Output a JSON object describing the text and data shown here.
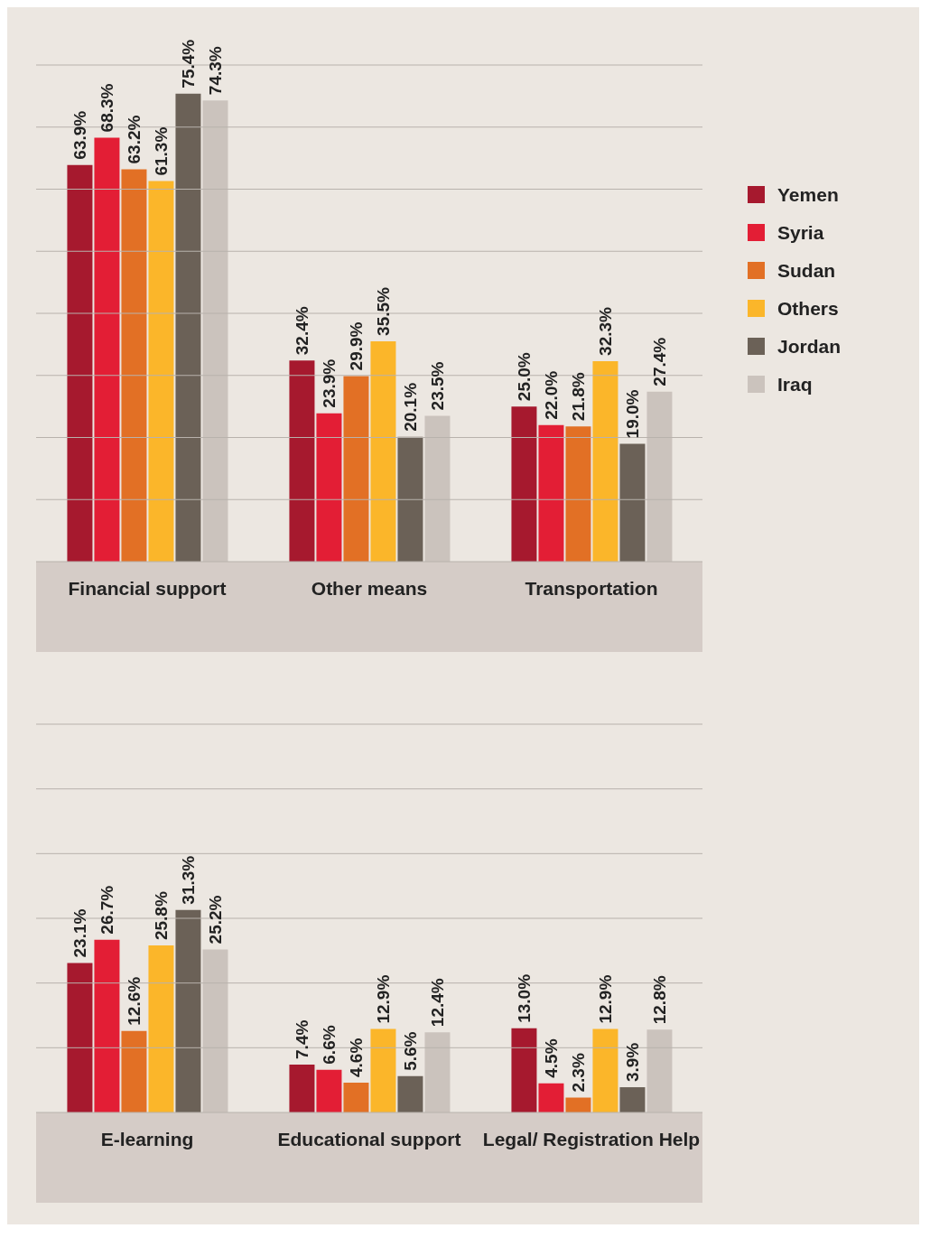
{
  "chart_data": [
    {
      "type": "bar",
      "categories": [
        "Financial support",
        "Other means",
        "Transportation"
      ],
      "ylim": [
        0,
        80
      ],
      "yticks": [
        {
          "value": 0,
          "label": null
        },
        {
          "value": 10,
          "label": null
        },
        {
          "value": 20,
          "label": null
        },
        {
          "value": 30,
          "label": null
        },
        {
          "value": 40,
          "label": null
        },
        {
          "value": 50,
          "label": null
        },
        {
          "value": 60,
          "label": null
        },
        {
          "value": 70,
          "label": null
        },
        {
          "value": 80,
          "label": null
        }
      ],
      "grid": "y",
      "tick_labels": "x",
      "legend": "right",
      "series": [
        {
          "name": "Yemen",
          "color": "#a6192e",
          "values": [
            63.9,
            32.4,
            25.0
          ],
          "value_labels": [
            "63.9%",
            "32.4%",
            "25.0%"
          ]
        },
        {
          "name": "Syria",
          "color": "#e31e35",
          "values": [
            68.3,
            23.9,
            22.0
          ],
          "value_labels": [
            "68.3%",
            "23.9%",
            "22.0%"
          ]
        },
        {
          "name": "Sudan",
          "color": "#e27025",
          "values": [
            63.2,
            29.9,
            21.8
          ],
          "value_labels": [
            "63.2%",
            "29.9%",
            "21.8%"
          ]
        },
        {
          "name": "Others",
          "color": "#fbb62a",
          "values": [
            61.3,
            35.5,
            32.3
          ],
          "value_labels": [
            "61.3%",
            "35.5%",
            "32.3%"
          ]
        },
        {
          "name": "Jordan",
          "color": "#6b6157",
          "values": [
            75.4,
            20.1,
            19.0
          ],
          "value_labels": [
            "75.4%",
            "20.1%",
            "19.0%"
          ]
        },
        {
          "name": "Iraq",
          "color": "#cbc3bd",
          "values": [
            74.3,
            23.5,
            27.4
          ],
          "value_labels": [
            "74.3%",
            "23.5%",
            "27.4%"
          ]
        }
      ]
    },
    {
      "type": "bar",
      "categories": [
        "E-learning",
        "Educational support",
        "Legal/ Registration Help"
      ],
      "ylim": [
        0,
        60
      ],
      "yticks": [
        {
          "value": 0,
          "label": null
        },
        {
          "value": 10,
          "label": null
        },
        {
          "value": 20,
          "label": null
        },
        {
          "value": 30,
          "label": null
        },
        {
          "value": 40,
          "label": null
        },
        {
          "value": 50,
          "label": null
        },
        {
          "value": 60,
          "label": null
        }
      ],
      "grid": "y",
      "tick_labels": "x",
      "series": [
        {
          "color": "#a6192e",
          "values": [
            23.1,
            7.4,
            13.0
          ],
          "value_labels": [
            "23.1%",
            "7.4%",
            "13.0%"
          ]
        },
        {
          "color": "#e31e35",
          "values": [
            26.7,
            6.6,
            4.5
          ],
          "value_labels": [
            "26.7%",
            "6.6%",
            "4.5%"
          ]
        },
        {
          "color": "#e27025",
          "values": [
            12.6,
            4.6,
            2.3
          ],
          "value_labels": [
            "12.6%",
            "4.6%",
            "2.3%"
          ]
        },
        {
          "color": "#fbb62a",
          "values": [
            25.8,
            12.9,
            12.9
          ],
          "value_labels": [
            "25.8%",
            "12.9%",
            "12.9%"
          ]
        },
        {
          "color": "#6b6157",
          "values": [
            31.3,
            5.6,
            3.9
          ],
          "value_labels": [
            "31.3%",
            "5.6%",
            "3.9%"
          ]
        },
        {
          "color": "#cbc3bd",
          "values": [
            25.2,
            12.4,
            12.8
          ],
          "value_labels": [
            "25.2%",
            "12.4%",
            "12.8%"
          ]
        }
      ]
    }
  ]
}
